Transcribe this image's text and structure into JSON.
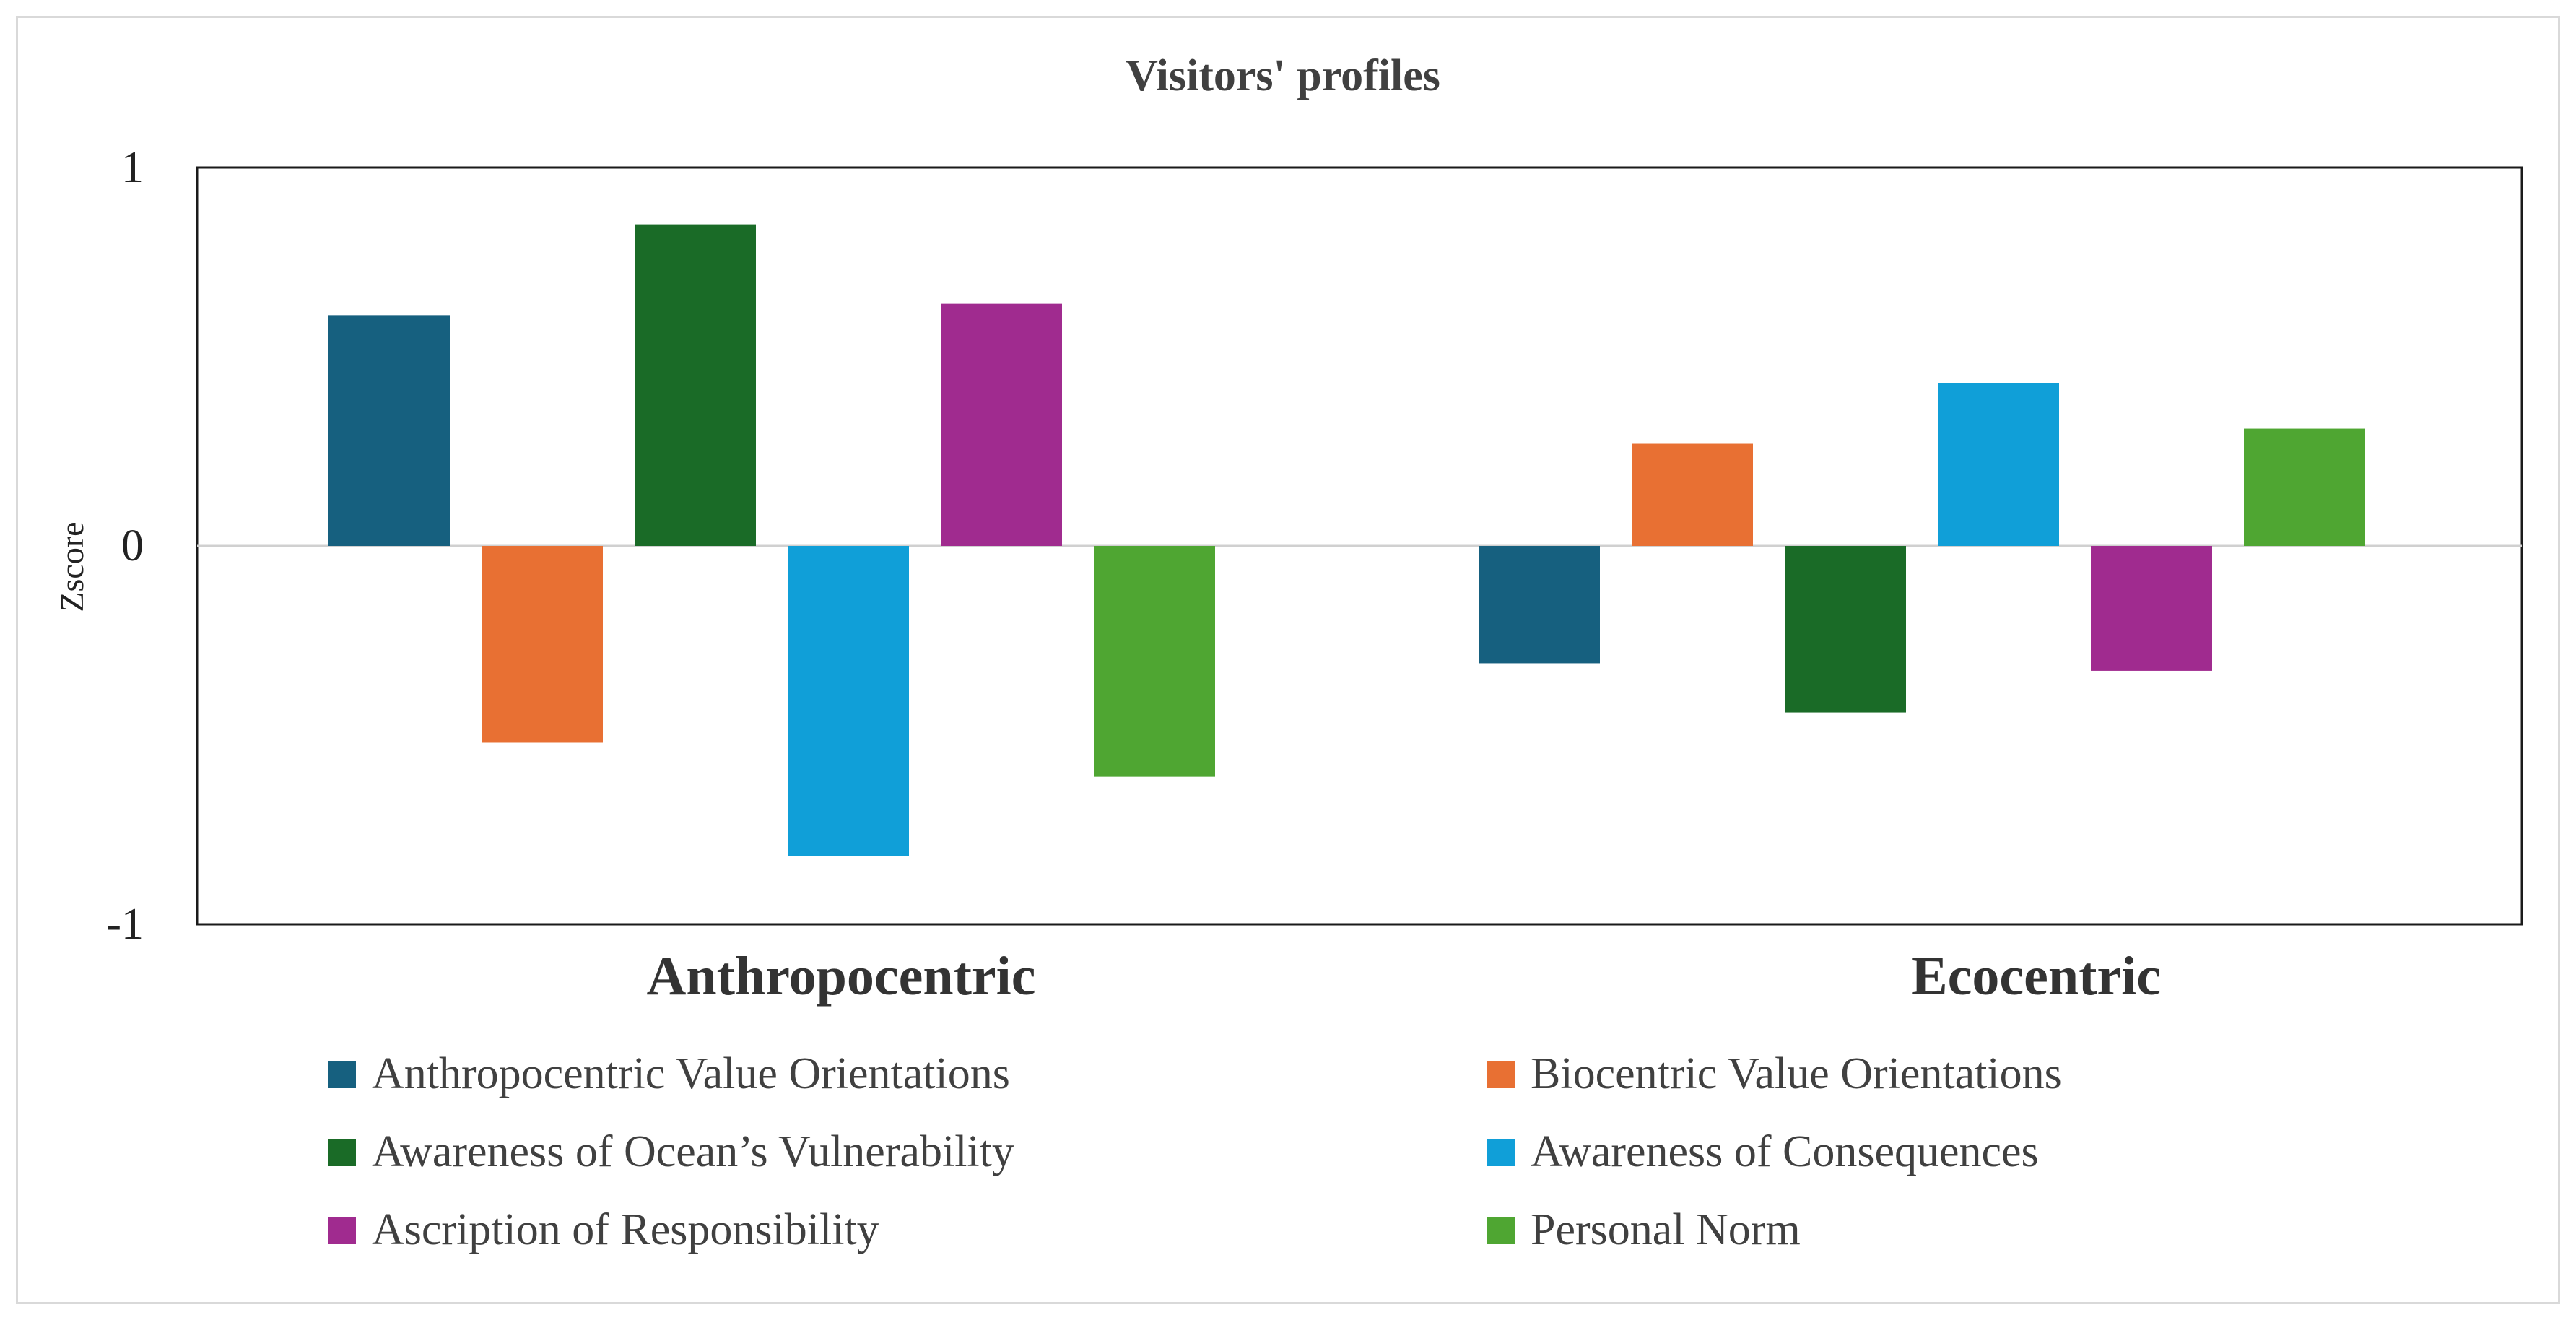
{
  "chart_data": {
    "type": "bar",
    "title": "Visitors' profiles",
    "ylabel": "Zscore",
    "xlabel": "",
    "ylim": [
      -1,
      1
    ],
    "yticks": [
      {
        "value": 1,
        "label": "1"
      },
      {
        "value": 0,
        "label": "0"
      },
      {
        "value": -1,
        "label": "-1"
      }
    ],
    "categories": [
      "Anthropocentric",
      "Ecocentric"
    ],
    "series": [
      {
        "name": "Anthropocentric Value Orientations",
        "color": "#16607F",
        "values": [
          0.61,
          -0.31
        ]
      },
      {
        "name": "Biocentric Value Orientations",
        "color": "#E87033",
        "values": [
          -0.52,
          0.27
        ]
      },
      {
        "name": "Awareness of Ocean’s Vulnerability",
        "color": "#1A6B27",
        "values": [
          0.85,
          -0.44
        ]
      },
      {
        "name": "Awareness of Consequences",
        "color": "#109FD8",
        "values": [
          -0.82,
          0.43
        ]
      },
      {
        "name": "Ascription of Responsibility",
        "color": "#A02B8F",
        "values": [
          0.64,
          -0.33
        ]
      },
      {
        "name": "Personal Norm",
        "color": "#4FA632",
        "values": [
          -0.61,
          0.31
        ]
      }
    ],
    "grid": false,
    "zero_line": true,
    "legend_position": "bottom"
  }
}
